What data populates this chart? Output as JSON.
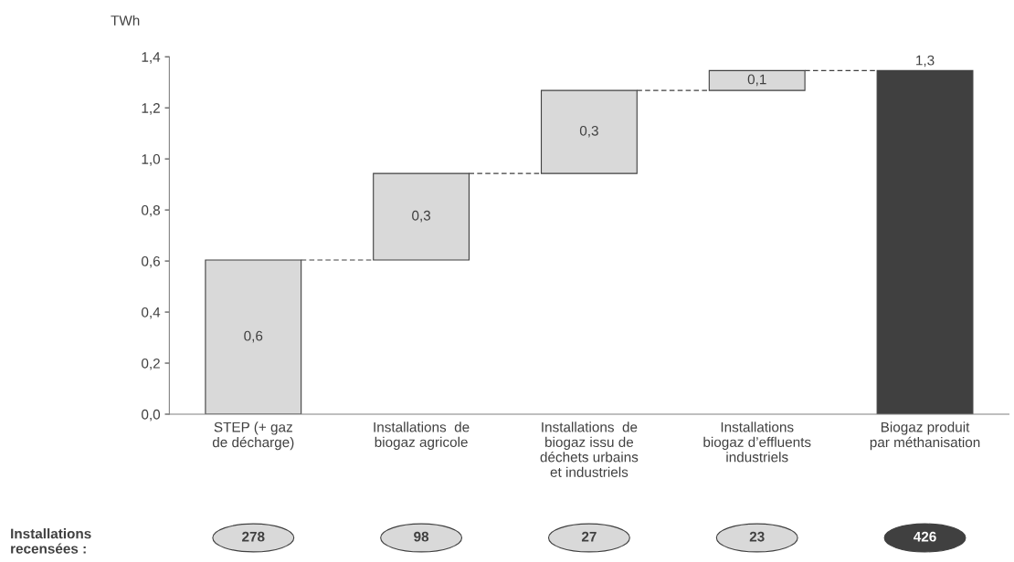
{
  "chart_data": {
    "type": "bar",
    "ylabel": "TWh",
    "categories": [
      "STEP (+ gaz\nde décharge)",
      "Installations  de\nbiogaz agricole",
      "Installations  de\nbiogaz issu de\ndéchets urbains\net industriels",
      "Installations\nbiogaz d’effluents\nindustriels",
      "Biogaz produit\npar méthanisation"
    ],
    "values": [
      0.604,
      0.339,
      0.325,
      0.078,
      1.346
    ],
    "base": [
      0,
      0.604,
      0.943,
      1.268,
      0
    ],
    "value_labels": [
      "0,6",
      "0,3",
      "0,3",
      "0,1",
      "1,3"
    ],
    "colors": [
      "#d9d9d9",
      "#d9d9d9",
      "#d9d9d9",
      "#d9d9d9",
      "#404040"
    ],
    "ylim": [
      0,
      1.4
    ],
    "yticks": [
      {
        "value": 0,
        "label": "0,0"
      },
      {
        "value": 0.2,
        "label": "0,2"
      },
      {
        "value": 0.4,
        "label": "0,4"
      },
      {
        "value": 0.6,
        "label": "0,6"
      },
      {
        "value": 0.8,
        "label": "0,8"
      },
      {
        "value": 1.0,
        "label": "1,0"
      },
      {
        "value": 1.2,
        "label": "1,2"
      },
      {
        "value": 1.4,
        "label": "1,4"
      }
    ],
    "grid": false,
    "legend": false,
    "annotations": [
      "Installations\nrecensées :",
      "278",
      "98",
      "27",
      "23",
      "426"
    ]
  }
}
